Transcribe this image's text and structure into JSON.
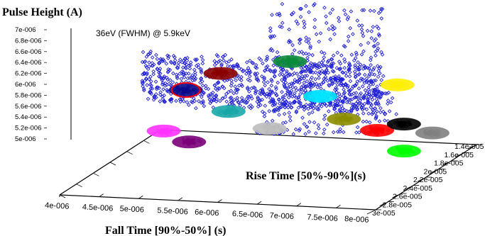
{
  "chart_data": {
    "type": "scatter",
    "title": "Pulse Height (A)",
    "annotation": "36eV (FWHM) @ 5.9keV",
    "zlabel": "Pulse Height (A)",
    "xlabel": "Fall Time [90%-50%] (s)",
    "ylabel": "Rise Time [50%-90%](s)",
    "z_ticks": [
      "7e-006",
      "6.8e-006",
      "6.6e-006",
      "6.4e-006",
      "6.2e-006",
      "6e-006",
      "5.8e-006",
      "5.6e-006",
      "5.4e-006",
      "5.2e-006",
      "5e-006"
    ],
    "x_ticks": [
      "4e-006",
      "4.5e-006",
      "5e-006",
      "5.5e-006",
      "6e-006",
      "6.5e-006",
      "7e-006",
      "7.5e-006",
      "8e-006"
    ],
    "y_ticks": [
      "1.4e-005",
      "1.6e-005",
      "1.8e-005",
      "2e-005",
      "2.2e-005",
      "2.4e-005",
      "2.6e-005",
      "2.8e-005",
      "3e-005"
    ],
    "xlim": [
      4e-06,
      8e-06
    ],
    "ylim": [
      1.4e-05,
      3e-05
    ],
    "zlim": [
      5e-06,
      7e-06
    ],
    "background_series": {
      "marker": "open-diamond",
      "color": "#1f1fd6"
    },
    "clusters": [
      {
        "color": "#0a0a8a",
        "outlined": true,
        "x": 4.6e-06,
        "y": 1.75e-05,
        "z": 6.05e-06
      },
      {
        "color": "#8b0000",
        "x": 5e-06,
        "y": 1.7e-05,
        "z": 6.35e-06
      },
      {
        "color": "#0b8a3a",
        "x": 5.8e-06,
        "y": 1.6e-05,
        "z": 6.55e-06
      },
      {
        "color": "#ff33ff",
        "x": 4.6e-06,
        "y": 2.1e-05,
        "z": 5.55e-06
      },
      {
        "color": "#19a7a7",
        "x": 5.3e-06,
        "y": 1.95e-05,
        "z": 5.85e-06
      },
      {
        "color": "#7a007a",
        "x": 5e-06,
        "y": 2.2e-05,
        "z": 5.45e-06
      },
      {
        "color": "#00e6ff",
        "x": 6.3e-06,
        "y": 1.75e-05,
        "z": 6.05e-06
      },
      {
        "color": "#bdbdbd",
        "x": 5.9e-06,
        "y": 2.05e-05,
        "z": 5.65e-06
      },
      {
        "color": "#ffee00",
        "x": 7.2e-06,
        "y": 1.65e-05,
        "z": 6.25e-06
      },
      {
        "color": "#8c8c00",
        "x": 6.8e-06,
        "y": 2e-05,
        "z": 5.85e-06
      },
      {
        "color": "#ff0000",
        "x": 7.3e-06,
        "y": 2.1e-05,
        "z": 5.75e-06
      },
      {
        "color": "#000000",
        "x": 7.6e-06,
        "y": 2.05e-05,
        "z": 5.85e-06
      },
      {
        "color": "#00ff00",
        "x": 7.8e-06,
        "y": 2.3e-05,
        "z": 5.55e-06
      },
      {
        "color": "#808080",
        "x": 8e-06,
        "y": 2.1e-05,
        "z": 5.75e-06
      }
    ]
  }
}
